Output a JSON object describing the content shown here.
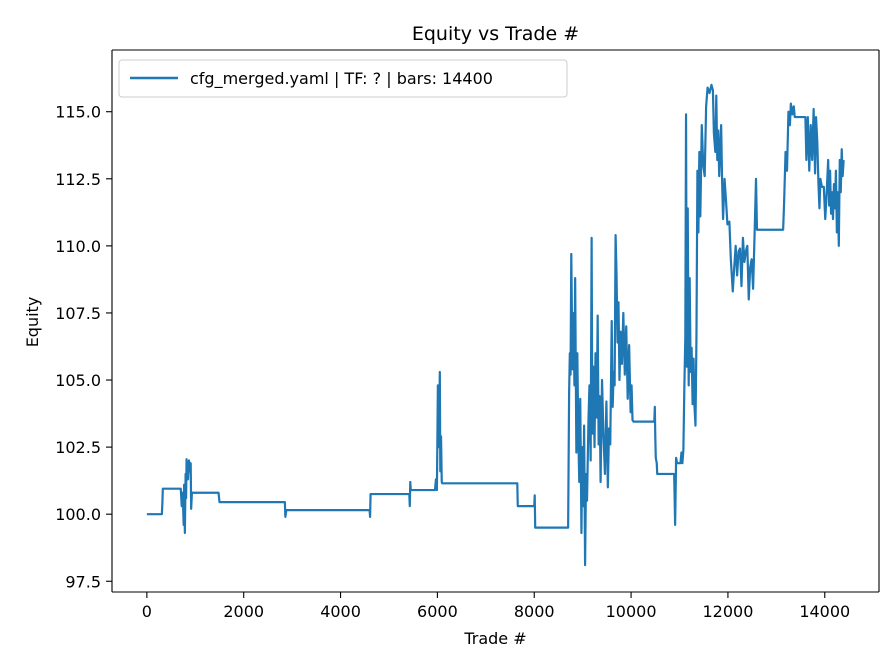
{
  "chart_data": {
    "type": "line",
    "title": "Equity vs Trade #",
    "xlabel": "Trade #",
    "ylabel": "Equity",
    "xlim": [
      -720,
      15120
    ],
    "ylim": [
      97.1,
      117.3
    ],
    "xticks": [
      0,
      2000,
      4000,
      6000,
      8000,
      10000,
      12000,
      14000
    ],
    "yticks": [
      97.5,
      100.0,
      102.5,
      105.0,
      107.5,
      110.0,
      112.5,
      115.0
    ],
    "xtick_labels": [
      "0",
      "2000",
      "4000",
      "6000",
      "8000",
      "10000",
      "12000",
      "14000"
    ],
    "ytick_labels": [
      "97.5",
      "100.0",
      "102.5",
      "105.0",
      "107.5",
      "110.0",
      "112.5",
      "115.0"
    ],
    "grid": false,
    "legend_position": "top-left",
    "series": [
      {
        "name": "cfg_merged.yaml | TF: ? | bars: 14400",
        "color": "#1f77b4",
        "points": [
          [
            0,
            100.0
          ],
          [
            310,
            100.0
          ],
          [
            320,
            100.4
          ],
          [
            330,
            100.95
          ],
          [
            700,
            100.95
          ],
          [
            720,
            100.3
          ],
          [
            740,
            100.8
          ],
          [
            760,
            99.6
          ],
          [
            770,
            101.1
          ],
          [
            785,
            99.3
          ],
          [
            800,
            101.5
          ],
          [
            810,
            100.6
          ],
          [
            820,
            102.05
          ],
          [
            850,
            101.3
          ],
          [
            870,
            102.0
          ],
          [
            890,
            101.6
          ],
          [
            905,
            101.9
          ],
          [
            915,
            100.2
          ],
          [
            930,
            100.8
          ],
          [
            1480,
            100.8
          ],
          [
            1500,
            100.45
          ],
          [
            2850,
            100.45
          ],
          [
            2860,
            99.9
          ],
          [
            2880,
            100.15
          ],
          [
            4600,
            100.15
          ],
          [
            4610,
            99.9
          ],
          [
            4620,
            100.75
          ],
          [
            5420,
            100.75
          ],
          [
            5430,
            100.3
          ],
          [
            5440,
            101.2
          ],
          [
            5450,
            100.9
          ],
          [
            5950,
            100.9
          ],
          [
            5970,
            101.3
          ],
          [
            5990,
            100.9
          ],
          [
            6010,
            104.8
          ],
          [
            6030,
            102.5
          ],
          [
            6050,
            105.3
          ],
          [
            6060,
            101.6
          ],
          [
            6075,
            102.9
          ],
          [
            6090,
            101.2
          ],
          [
            6100,
            101.15
          ],
          [
            7650,
            101.15
          ],
          [
            7660,
            100.3
          ],
          [
            8000,
            100.3
          ],
          [
            8010,
            100.7
          ],
          [
            8020,
            99.5
          ],
          [
            8700,
            99.5
          ],
          [
            8720,
            104.5
          ],
          [
            8735,
            106.0
          ],
          [
            8750,
            105.2
          ],
          [
            8765,
            109.7
          ],
          [
            8790,
            105.4
          ],
          [
            8810,
            107.5
          ],
          [
            8830,
            104.8
          ],
          [
            8845,
            108.8
          ],
          [
            8870,
            102.3
          ],
          [
            8890,
            106.0
          ],
          [
            8910,
            103.0
          ],
          [
            8930,
            101.2
          ],
          [
            8950,
            104.3
          ],
          [
            8975,
            99.3
          ],
          [
            8990,
            102.5
          ],
          [
            9010,
            100.3
          ],
          [
            9030,
            103.3
          ],
          [
            9050,
            98.1
          ],
          [
            9070,
            101.5
          ],
          [
            9090,
            100.5
          ],
          [
            9120,
            103.5
          ],
          [
            9140,
            104.8
          ],
          [
            9165,
            102.0
          ],
          [
            9185,
            110.3
          ],
          [
            9200,
            103.0
          ],
          [
            9220,
            105.5
          ],
          [
            9245,
            102.5
          ],
          [
            9265,
            106.0
          ],
          [
            9290,
            103.6
          ],
          [
            9310,
            107.4
          ],
          [
            9330,
            102.6
          ],
          [
            9350,
            104.4
          ],
          [
            9370,
            101.2
          ],
          [
            9400,
            105.0
          ],
          [
            9430,
            102.9
          ],
          [
            9460,
            101.5
          ],
          [
            9490,
            104.2
          ],
          [
            9520,
            101.0
          ],
          [
            9545,
            103.2
          ],
          [
            9570,
            102.6
          ],
          [
            9600,
            107.2
          ],
          [
            9620,
            104.0
          ],
          [
            9640,
            105.3
          ],
          [
            9660,
            104.8
          ],
          [
            9680,
            110.4
          ],
          [
            9700,
            108.9
          ],
          [
            9720,
            106.4
          ],
          [
            9740,
            107.9
          ],
          [
            9760,
            105.0
          ],
          [
            9785,
            106.8
          ],
          [
            9810,
            105.6
          ],
          [
            9840,
            107.5
          ],
          [
            9870,
            105.2
          ],
          [
            9900,
            107.0
          ],
          [
            9930,
            104.3
          ],
          [
            9960,
            106.3
          ],
          [
            9990,
            103.8
          ],
          [
            10010,
            104.8
          ],
          [
            10030,
            103.5
          ],
          [
            10050,
            103.45
          ],
          [
            10480,
            103.45
          ],
          [
            10490,
            104.0
          ],
          [
            10500,
            102.9
          ],
          [
            10510,
            102.1
          ],
          [
            10530,
            101.9
          ],
          [
            10540,
            101.5
          ],
          [
            10890,
            101.5
          ],
          [
            10910,
            99.6
          ],
          [
            10930,
            102.1
          ],
          [
            10950,
            101.9
          ],
          [
            11020,
            101.9
          ],
          [
            11040,
            102.3
          ],
          [
            11060,
            101.9
          ],
          [
            11080,
            102.4
          ],
          [
            11100,
            104.7
          ],
          [
            11120,
            106.6
          ],
          [
            11135,
            114.9
          ],
          [
            11150,
            105.5
          ],
          [
            11170,
            111.4
          ],
          [
            11190,
            104.8
          ],
          [
            11210,
            108.8
          ],
          [
            11230,
            105.3
          ],
          [
            11250,
            106.2
          ],
          [
            11270,
            104.1
          ],
          [
            11290,
            105.8
          ],
          [
            11310,
            104.0
          ],
          [
            11330,
            103.3
          ],
          [
            11350,
            106.6
          ],
          [
            11370,
            112.8
          ],
          [
            11390,
            110.5
          ],
          [
            11410,
            113.5
          ],
          [
            11430,
            111.1
          ],
          [
            11460,
            114.5
          ],
          [
            11490,
            113.0
          ],
          [
            11520,
            112.6
          ],
          [
            11550,
            115.2
          ],
          [
            11580,
            115.9
          ],
          [
            11620,
            115.7
          ],
          [
            11660,
            116.0
          ],
          [
            11690,
            115.8
          ],
          [
            11710,
            114.2
          ],
          [
            11740,
            113.5
          ],
          [
            11760,
            115.6
          ],
          [
            11780,
            113.2
          ],
          [
            11800,
            114.3
          ],
          [
            11820,
            112.6
          ],
          [
            11860,
            114.5
          ],
          [
            11880,
            112.4
          ],
          [
            11900,
            111.0
          ],
          [
            11930,
            112.5
          ],
          [
            11960,
            111.7
          ],
          [
            11990,
            110.8
          ],
          [
            12030,
            110.9
          ],
          [
            12060,
            109.5
          ],
          [
            12100,
            108.3
          ],
          [
            12130,
            109.2
          ],
          [
            12160,
            110.0
          ],
          [
            12190,
            108.9
          ],
          [
            12220,
            109.8
          ],
          [
            12250,
            109.9
          ],
          [
            12280,
            108.5
          ],
          [
            12310,
            110.3
          ],
          [
            12340,
            109.4
          ],
          [
            12370,
            109.8
          ],
          [
            12400,
            110.0
          ],
          [
            12430,
            108.0
          ],
          [
            12460,
            109.2
          ],
          [
            12490,
            109.5
          ],
          [
            12520,
            108.4
          ],
          [
            12550,
            110.4
          ],
          [
            12580,
            112.5
          ],
          [
            12600,
            110.6
          ],
          [
            12640,
            110.6
          ],
          [
            12690,
            110.6
          ],
          [
            13140,
            110.6
          ],
          [
            13160,
            111.6
          ],
          [
            13190,
            113.5
          ],
          [
            13220,
            112.8
          ],
          [
            13250,
            115.0
          ],
          [
            13280,
            114.5
          ],
          [
            13300,
            115.3
          ],
          [
            13330,
            114.9
          ],
          [
            13360,
            115.2
          ],
          [
            13380,
            114.8
          ],
          [
            13600,
            114.8
          ],
          [
            13620,
            113.2
          ],
          [
            13650,
            114.8
          ],
          [
            13680,
            112.8
          ],
          [
            13710,
            114.5
          ],
          [
            13740,
            113.2
          ],
          [
            13770,
            115.1
          ],
          [
            13800,
            112.7
          ],
          [
            13820,
            114.8
          ],
          [
            13845,
            113.9
          ],
          [
            13870,
            112.3
          ],
          [
            13890,
            111.4
          ],
          [
            13910,
            112.5
          ],
          [
            13940,
            112.2
          ],
          [
            13980,
            112.2
          ],
          [
            14010,
            111.0
          ],
          [
            14040,
            112.0
          ],
          [
            14070,
            113.2
          ],
          [
            14090,
            111.5
          ],
          [
            14110,
            112.8
          ],
          [
            14130,
            111.2
          ],
          [
            14150,
            112.0
          ],
          [
            14170,
            111.0
          ],
          [
            14190,
            112.3
          ],
          [
            14210,
            111.4
          ],
          [
            14230,
            112.8
          ],
          [
            14250,
            110.5
          ],
          [
            14270,
            112.0
          ],
          [
            14290,
            110.0
          ],
          [
            14310,
            113.2
          ],
          [
            14330,
            112.0
          ],
          [
            14350,
            113.6
          ],
          [
            14370,
            112.6
          ],
          [
            14390,
            113.2
          ]
        ]
      }
    ]
  }
}
